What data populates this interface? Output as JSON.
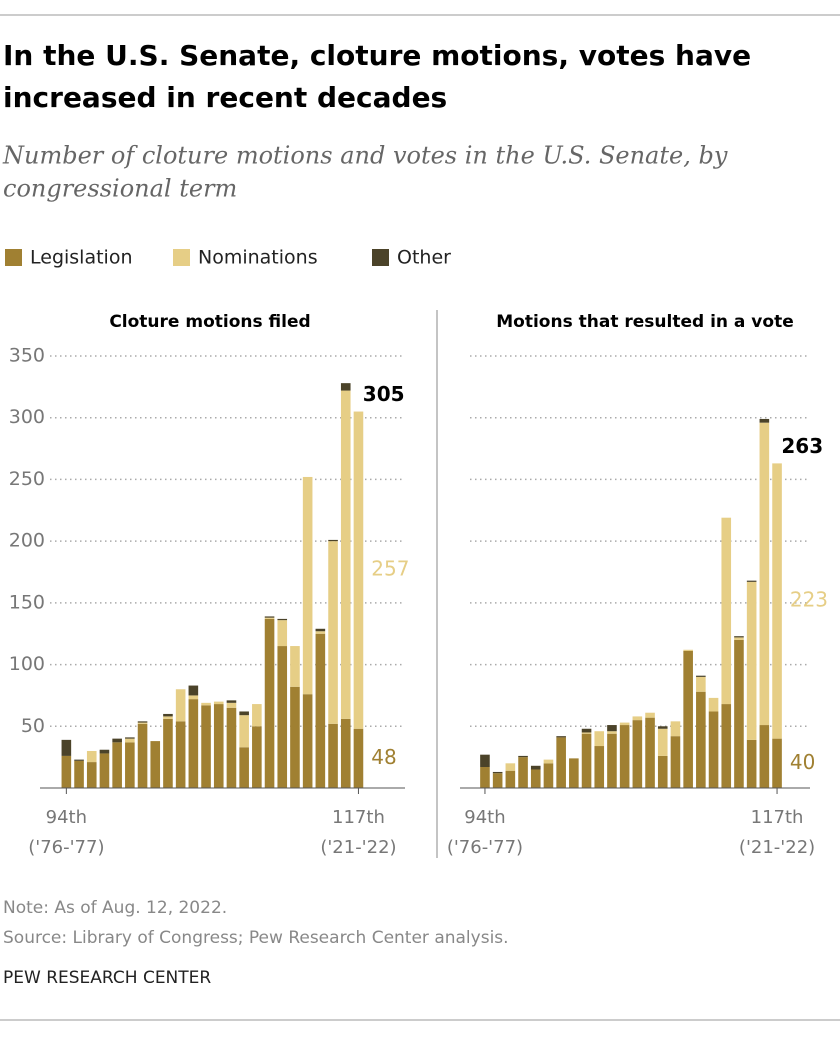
{
  "header": {
    "title": [
      "In the U.S. Senate, cloture motions, votes have",
      "increased in recent decades"
    ],
    "subtitle": [
      "Number of cloture motions and votes in the U.S. Senate, by",
      "congressional term"
    ]
  },
  "chart_data": [
    {
      "type": "bar",
      "stacked": true,
      "title": "Cloture motions filed",
      "categories": [
        "94th",
        null,
        null,
        null,
        null,
        null,
        null,
        null,
        null,
        null,
        null,
        null,
        null,
        null,
        null,
        null,
        null,
        null,
        null,
        null,
        null,
        null,
        null,
        "117th"
      ],
      "category_years": [
        "('76-'77)",
        null,
        null,
        null,
        null,
        null,
        null,
        null,
        null,
        null,
        null,
        null,
        null,
        null,
        null,
        null,
        null,
        null,
        null,
        null,
        null,
        null,
        null,
        "('21-'22)"
      ],
      "series": [
        {
          "name": "Legislation",
          "color": "#a08032",
          "values": [
            26,
            22,
            21,
            28,
            37,
            37,
            52,
            38,
            56,
            54,
            72,
            67,
            68,
            65,
            33,
            50,
            137,
            115,
            82,
            76,
            125,
            52,
            56,
            48
          ],
          "value_labels": [
            null,
            null,
            null,
            null,
            null,
            null,
            null,
            null,
            null,
            null,
            null,
            null,
            null,
            null,
            null,
            null,
            null,
            null,
            null,
            null,
            null,
            null,
            null,
            "48"
          ]
        },
        {
          "name": "Nominations",
          "color": "#e6ce86",
          "values": [
            0,
            0,
            9,
            0,
            0,
            3,
            1,
            0,
            2,
            26,
            3,
            2,
            2,
            4,
            26,
            18,
            1,
            21,
            33,
            176,
            2,
            148,
            266,
            257
          ],
          "value_labels": [
            null,
            null,
            null,
            null,
            null,
            null,
            null,
            null,
            null,
            null,
            null,
            null,
            null,
            null,
            null,
            null,
            null,
            null,
            null,
            null,
            null,
            null,
            null,
            "257"
          ]
        },
        {
          "name": "Other",
          "color": "#4b4329",
          "values": [
            13,
            1,
            0,
            3,
            3,
            1,
            1,
            0,
            2,
            0,
            8,
            0,
            0,
            2,
            3,
            0,
            1,
            1,
            0,
            0,
            2,
            1,
            6,
            0
          ]
        }
      ],
      "total_label": "305",
      "ylim": [
        0,
        350
      ],
      "yticks": [
        50,
        100,
        150,
        200,
        250,
        300,
        350
      ],
      "grid": true
    },
    {
      "type": "bar",
      "stacked": true,
      "title": "Motions that resulted in a vote",
      "categories": [
        "94th",
        null,
        null,
        null,
        null,
        null,
        null,
        null,
        null,
        null,
        null,
        null,
        null,
        null,
        null,
        null,
        null,
        null,
        null,
        null,
        null,
        null,
        null,
        "117th"
      ],
      "category_years": [
        "('76-'77)",
        null,
        null,
        null,
        null,
        null,
        null,
        null,
        null,
        null,
        null,
        null,
        null,
        null,
        null,
        null,
        null,
        null,
        null,
        null,
        null,
        null,
        null,
        "('21-'22)"
      ],
      "series": [
        {
          "color": "#a08032",
          "values": [
            17,
            12,
            14,
            25,
            15,
            20,
            41,
            24,
            44,
            34,
            44,
            51,
            55,
            57,
            26,
            42,
            111,
            78,
            62,
            68,
            120,
            39,
            51,
            40
          ],
          "value_labels": [
            null,
            null,
            null,
            null,
            null,
            null,
            null,
            null,
            null,
            null,
            null,
            null,
            null,
            null,
            null,
            null,
            null,
            null,
            null,
            null,
            null,
            null,
            null,
            "40"
          ]
        },
        {
          "color": "#e6ce86",
          "values": [
            0,
            0,
            6,
            0,
            0,
            3,
            0,
            0,
            1,
            12,
            2,
            2,
            3,
            4,
            22,
            12,
            1,
            12,
            11,
            151,
            2,
            128,
            245,
            223
          ],
          "value_labels": [
            null,
            null,
            null,
            null,
            null,
            null,
            null,
            null,
            null,
            null,
            null,
            null,
            null,
            null,
            null,
            null,
            null,
            null,
            null,
            null,
            null,
            null,
            null,
            "223"
          ]
        },
        {
          "color": "#4b4329",
          "values": [
            10,
            1,
            0,
            1,
            3,
            0,
            1,
            0,
            3,
            0,
            5,
            0,
            0,
            0,
            2,
            0,
            0,
            1,
            0,
            0,
            1,
            1,
            3,
            0
          ]
        }
      ],
      "total_label": "263",
      "ylim": [
        0,
        350
      ],
      "yticks": [
        50,
        100,
        150,
        200,
        250,
        300,
        350
      ],
      "grid": true
    }
  ],
  "footer": {
    "note": "Note: As of Aug. 12, 2022.",
    "source": "Source: Library of Congress; Pew Research Center analysis.",
    "brand": "PEW RESEARCH CENTER"
  }
}
